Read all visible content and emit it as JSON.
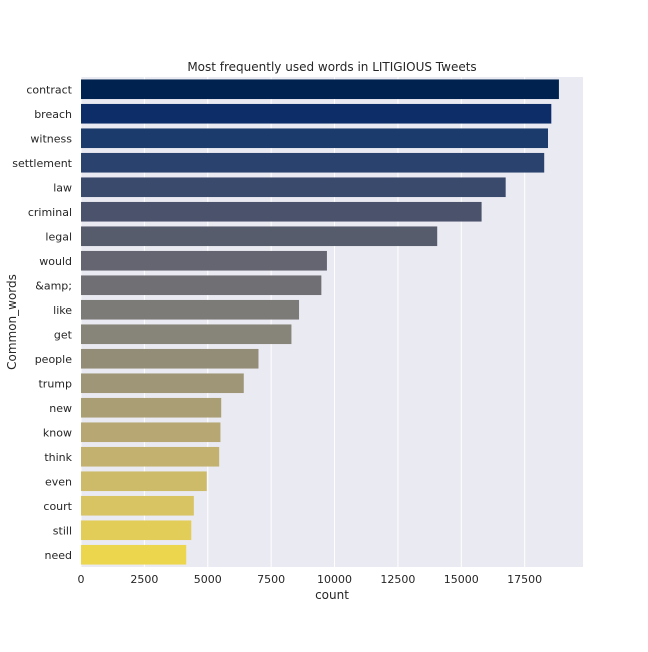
{
  "chart_data": {
    "type": "bar",
    "orientation": "horizontal",
    "title": "Most frequently used words in LITIGIOUS Tweets",
    "xlabel": "count",
    "ylabel": "Common_words",
    "xlim": [
      0,
      19800
    ],
    "xticks": [
      0,
      2500,
      5000,
      7500,
      10000,
      12500,
      15000,
      17500
    ],
    "grid": true,
    "categories": [
      "contract",
      "breach",
      "witness",
      "settlement",
      "law",
      "criminal",
      "legal",
      "would",
      "&amp;",
      "like",
      "get",
      "people",
      "trump",
      "new",
      "know",
      "think",
      "even",
      "court",
      "still",
      "need"
    ],
    "values": [
      18850,
      18550,
      18420,
      18270,
      16750,
      15800,
      14050,
      9700,
      9480,
      8600,
      8300,
      7000,
      6420,
      5530,
      5500,
      5450,
      4960,
      4450,
      4350,
      4150
    ],
    "colors": [
      "#00224e",
      "#0d2d68",
      "#1b3b6d",
      "#2a426e",
      "#3a4a6d",
      "#4a536b",
      "#575c6d",
      "#646570",
      "#706f73",
      "#7c7b78",
      "#878479",
      "#938c77",
      "#9f9677",
      "#aa9f74",
      "#b7a873",
      "#c3b26f",
      "#cebb69",
      "#d8c462",
      "#e2cd59",
      "#ecd64d"
    ],
    "background": "#eaeaf2"
  }
}
